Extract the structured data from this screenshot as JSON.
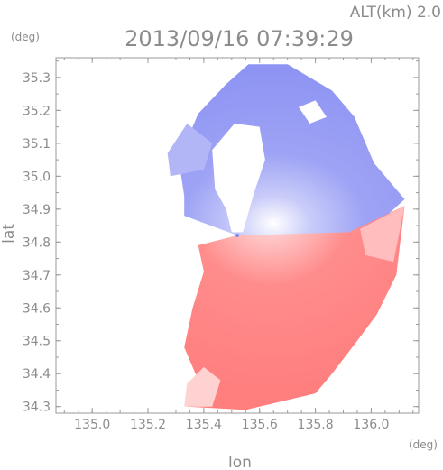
{
  "header": {
    "altitude": "ALT(km)  2.0",
    "timestamp": "2013/09/16 07:39:29",
    "y_unit": "(deg)",
    "x_unit": "(deg)"
  },
  "chart_data": {
    "type": "heatmap",
    "title": "2013/09/16 07:39:29",
    "subtitle": "ALT(km)  2.0",
    "xlabel": "lon",
    "ylabel": "lat",
    "x_unit": "(deg)",
    "y_unit": "(deg)",
    "xlim": [
      134.87,
      136.17
    ],
    "ylim": [
      34.28,
      35.36
    ],
    "x_ticks": [
      135.0,
      135.2,
      135.4,
      135.6,
      135.8,
      136.0
    ],
    "x_tick_labels": [
      "135.0",
      "135.2",
      "135.4",
      "135.6",
      "135.8",
      "136.0"
    ],
    "y_ticks": [
      34.3,
      34.4,
      34.5,
      34.6,
      34.7,
      34.8,
      34.9,
      35.0,
      35.1,
      35.2,
      35.3
    ],
    "y_tick_labels": [
      "34.3",
      "34.4",
      "34.5",
      "34.6",
      "34.7",
      "34.8",
      "34.9",
      "35.0",
      "35.1",
      "35.2",
      "35.3"
    ],
    "radar_center": {
      "lon": 135.52,
      "lat": 34.82
    },
    "colors": {
      "toward": "#7f86f2",
      "away": "#ff7878",
      "neutral": "#ffffff"
    },
    "regions": [
      {
        "name": "north-blue-sector",
        "color": "#9fa4f5",
        "points": [
          [
            135.33,
            34.88
          ],
          [
            135.52,
            34.82
          ],
          [
            135.99,
            34.83
          ],
          [
            136.12,
            34.93
          ],
          [
            136.01,
            35.04
          ],
          [
            135.94,
            35.18
          ],
          [
            135.86,
            35.26
          ],
          [
            135.7,
            35.34
          ],
          [
            135.56,
            35.34
          ],
          [
            135.48,
            35.28
          ],
          [
            135.38,
            35.19
          ],
          [
            135.31,
            35.05
          ],
          [
            135.33,
            34.94
          ]
        ]
      },
      {
        "name": "north-west-fringe",
        "color": "#b2b6f7",
        "points": [
          [
            135.28,
            35.0
          ],
          [
            135.4,
            35.02
          ],
          [
            135.43,
            35.1
          ],
          [
            135.34,
            35.16
          ],
          [
            135.27,
            35.07
          ]
        ]
      },
      {
        "name": "south-red-sector",
        "color": "#ff8585",
        "points": [
          [
            135.38,
            34.79
          ],
          [
            135.52,
            34.82
          ],
          [
            135.92,
            34.83
          ],
          [
            136.12,
            34.91
          ],
          [
            136.09,
            34.7
          ],
          [
            136.02,
            34.58
          ],
          [
            135.95,
            34.5
          ],
          [
            135.86,
            34.4
          ],
          [
            135.8,
            34.34
          ],
          [
            135.55,
            34.29
          ],
          [
            135.34,
            34.3
          ],
          [
            135.38,
            34.38
          ],
          [
            135.33,
            34.48
          ],
          [
            135.36,
            34.6
          ],
          [
            135.4,
            34.71
          ]
        ]
      },
      {
        "name": "south-west-pale",
        "color": "#ffd2d2",
        "points": [
          [
            135.33,
            34.3
          ],
          [
            135.43,
            34.3
          ],
          [
            135.46,
            34.38
          ],
          [
            135.4,
            34.42
          ],
          [
            135.34,
            34.37
          ]
        ]
      },
      {
        "name": "east-pale-red",
        "color": "#ffbdbd",
        "points": [
          [
            135.96,
            34.84
          ],
          [
            136.12,
            34.91
          ],
          [
            136.08,
            34.74
          ],
          [
            135.98,
            34.76
          ]
        ]
      }
    ],
    "gaps": [
      {
        "name": "central-gap",
        "points": [
          [
            135.5,
            34.83
          ],
          [
            135.54,
            34.83
          ],
          [
            135.58,
            34.95
          ],
          [
            135.62,
            35.05
          ],
          [
            135.6,
            35.15
          ],
          [
            135.51,
            35.16
          ],
          [
            135.43,
            35.08
          ],
          [
            135.44,
            34.96
          ],
          [
            135.48,
            34.9
          ]
        ]
      },
      {
        "name": "north-gap-1",
        "points": [
          [
            135.78,
            35.16
          ],
          [
            135.84,
            35.18
          ],
          [
            135.8,
            35.23
          ],
          [
            135.74,
            35.21
          ]
        ]
      },
      {
        "name": "north-gap-2",
        "points": [
          [
            135.88,
            35.24
          ],
          [
            135.95,
            35.22
          ],
          [
            135.93,
            35.28
          ],
          [
            135.87,
            35.3
          ]
        ]
      }
    ]
  }
}
